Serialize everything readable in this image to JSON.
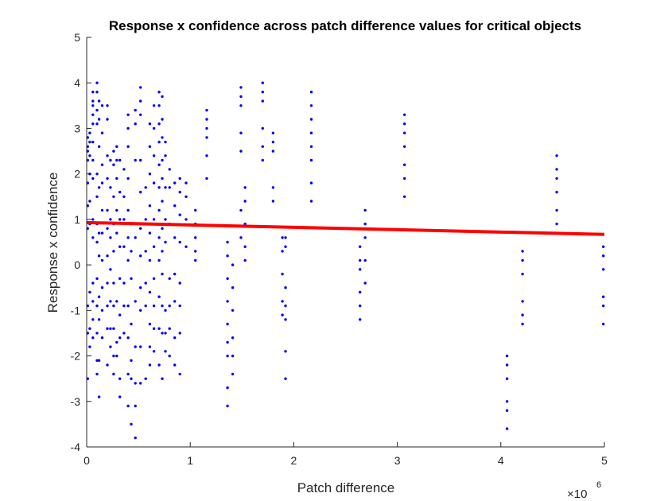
{
  "chart_data": {
    "type": "scatter",
    "title": "Response x confidence across patch difference values for critical objects",
    "xlabel": "Patch difference",
    "ylabel": "Response x confidence",
    "xlim": [
      0,
      5000000
    ],
    "ylim": [
      -4,
      5
    ],
    "x_ticks": [
      0,
      1,
      2,
      3,
      4,
      5
    ],
    "x_tick_labels": [
      "0",
      "1",
      "2",
      "3",
      "4",
      "5"
    ],
    "x_exponent_label": {
      "base": "×10",
      "exp": "6"
    },
    "y_ticks": [
      -4,
      -3,
      -2,
      -1,
      0,
      1,
      2,
      3,
      4,
      5
    ],
    "y_tick_labels": [
      "-4",
      "-3",
      "-2",
      "-1",
      "0",
      "1",
      "2",
      "3",
      "4",
      "5"
    ],
    "grid": false,
    "point_color": "#0000ff",
    "line_color": "#ff0000",
    "point_columns": [
      {
        "x": 10000,
        "ys": [
          2.8,
          2.6,
          2.5,
          2.3,
          1.8,
          1.3,
          0.8,
          -0.9,
          -1.5,
          -2.5
        ]
      },
      {
        "x": 30000,
        "ys": [
          2.9,
          2.7,
          2.4,
          2.0,
          1.4,
          0.9,
          -0.6,
          -1.4,
          -1.8
        ]
      },
      {
        "x": 60000,
        "ys": [
          3.8,
          3.6,
          3.5,
          3.3,
          3.1,
          2.7,
          2.3,
          1.9,
          1.0,
          0.6,
          -0.4,
          -0.8,
          -1.2,
          -1.6
        ]
      },
      {
        "x": 100000,
        "ys": [
          4.0,
          3.8,
          3.4,
          3.1,
          2.0,
          1.5,
          0.9,
          0.5,
          -0.3,
          -0.9,
          -1.5,
          -2.1,
          -2.4
        ]
      },
      {
        "x": 120000,
        "ys": [
          3.6,
          3.2,
          2.6,
          1.7,
          0.7,
          0.2,
          -0.7,
          -1.2,
          -2.1,
          -2.9
        ]
      },
      {
        "x": 150000,
        "ys": [
          3.5,
          2.9,
          2.2,
          1.8,
          1.2,
          0.7,
          0.1,
          -0.5,
          -1.0,
          -1.6
        ]
      },
      {
        "x": 200000,
        "ys": [
          3.5,
          3.2,
          2.4,
          1.9,
          1.2,
          0.8,
          0.2,
          -0.4,
          -0.9,
          -1.4,
          -2.2
        ]
      },
      {
        "x": 230000,
        "ys": [
          2.3,
          1.7,
          1.0,
          0.6,
          -0.1,
          -0.8,
          -1.4,
          -1.8
        ]
      },
      {
        "x": 260000,
        "ys": [
          2.5,
          2.2,
          1.5,
          0.9,
          0.3,
          -0.4,
          -0.9,
          -1.4,
          -2.0,
          -2.4
        ]
      },
      {
        "x": 290000,
        "ys": [
          2.6,
          2.3,
          1.9,
          1.2,
          0.7,
          -0.8,
          -1.7,
          -2.0
        ]
      },
      {
        "x": 320000,
        "ys": [
          2.3,
          1.6,
          1.0,
          0.4,
          -0.3,
          -1.1,
          -1.6,
          -2.5,
          -2.9
        ]
      },
      {
        "x": 360000,
        "ys": [
          2.1,
          1.5,
          1.0,
          0.4,
          -0.4,
          -0.9,
          -1.5
        ]
      },
      {
        "x": 400000,
        "ys": [
          3.3,
          3.0,
          2.6,
          1.9,
          1.2,
          0.6,
          0.1,
          -0.9,
          -1.6,
          -2.4,
          -3.1
        ]
      },
      {
        "x": 430000,
        "ys": [
          0.9,
          0.3,
          -0.3,
          -1.3,
          -2.1,
          -2.5,
          -3.5
        ]
      },
      {
        "x": 470000,
        "ys": [
          3.4,
          3.1,
          2.3,
          0.6,
          -0.8,
          -1.8,
          -2.6,
          -3.1,
          -3.8
        ]
      },
      {
        "x": 520000,
        "ys": [
          3.9,
          3.6,
          3.3,
          2.3,
          1.6,
          0.8,
          0.2,
          -0.5,
          -1.0,
          -1.8,
          -2.6
        ]
      },
      {
        "x": 570000,
        "ys": [
          1.7,
          1.0,
          0.3,
          -0.4,
          -0.9,
          -2.5
        ]
      },
      {
        "x": 610000,
        "ys": [
          3.1,
          2.6,
          2.0,
          1.3,
          0.7,
          0.1,
          -0.6,
          -1.3,
          -1.8,
          -2.2
        ]
      },
      {
        "x": 650000,
        "ys": [
          3.5,
          3.0,
          2.4,
          1.8,
          1.0,
          0.4,
          -0.3,
          -0.9,
          -1.4,
          -1.9
        ]
      },
      {
        "x": 700000,
        "ys": [
          3.8,
          3.5,
          3.1,
          2.7,
          2.2,
          1.7,
          1.2,
          0.6,
          0.1,
          -0.7,
          -1.4,
          -2.2
        ]
      },
      {
        "x": 730000,
        "ys": [
          3.7,
          3.2,
          2.8,
          2.3,
          1.9,
          1.4,
          0.8,
          0.3,
          -0.2,
          -0.9,
          -1.5,
          -2.5
        ]
      },
      {
        "x": 760000,
        "ys": [
          2.7,
          2.4,
          1.7,
          1.0,
          0.5,
          -1.0,
          -1.5,
          -1.9
        ]
      },
      {
        "x": 800000,
        "ys": [
          2.1,
          1.7,
          0.9,
          -0.3,
          -0.9,
          -1.4,
          -2.0
        ]
      },
      {
        "x": 850000,
        "ys": [
          1.8,
          1.3,
          0.6,
          -0.2,
          -0.8,
          -1.6,
          -2.2
        ]
      },
      {
        "x": 900000,
        "ys": [
          1.9,
          1.6,
          1.1,
          0.5,
          -0.4,
          -0.9,
          -1.5,
          -2.4
        ]
      },
      {
        "x": 960000,
        "ys": [
          1.8,
          1.5,
          1.0,
          0.4
        ]
      },
      {
        "x": 1050000,
        "ys": [
          1.2,
          0.9,
          0.6,
          0.3,
          0.1
        ]
      },
      {
        "x": 1160000,
        "ys": [
          3.4,
          3.2,
          3.0,
          2.8,
          2.4,
          1.9
        ]
      },
      {
        "x": 1360000,
        "ys": [
          0.5,
          0.2,
          -0.3,
          -0.8,
          -1.3,
          -1.7,
          -2.0,
          -2.7,
          -3.1
        ]
      },
      {
        "x": 1410000,
        "ys": [
          0.0,
          -0.5,
          -1.0,
          -1.6,
          -2.0,
          -2.4
        ]
      },
      {
        "x": 1490000,
        "ys": [
          3.9,
          3.7,
          3.5,
          2.9,
          2.5,
          1.2,
          0.6
        ]
      },
      {
        "x": 1530000,
        "ys": [
          1.7,
          1.4,
          0.9,
          0.4,
          0.1
        ]
      },
      {
        "x": 1700000,
        "ys": [
          4.0,
          3.8,
          3.6,
          3.0,
          2.6,
          2.3
        ]
      },
      {
        "x": 1800000,
        "ys": [
          2.9,
          2.7,
          2.5,
          1.7,
          1.4
        ]
      },
      {
        "x": 1890000,
        "ys": [
          0.6,
          0.3,
          -0.2,
          -0.8,
          -1.1
        ]
      },
      {
        "x": 1920000,
        "ys": [
          0.6,
          0.4,
          -0.5,
          -0.9,
          -1.2,
          -1.9,
          -2.5
        ]
      },
      {
        "x": 2170000,
        "ys": [
          3.8,
          3.5,
          3.2,
          2.9,
          2.6,
          2.3,
          1.8,
          1.4
        ]
      },
      {
        "x": 2640000,
        "ys": [
          0.4,
          0.1,
          -0.1,
          -0.6,
          -0.9,
          -1.2
        ]
      },
      {
        "x": 2690000,
        "ys": [
          1.2,
          0.9,
          0.6,
          0.1,
          -0.4
        ]
      },
      {
        "x": 3070000,
        "ys": [
          3.3,
          3.1,
          2.9,
          2.6,
          2.2,
          1.9,
          1.5
        ]
      },
      {
        "x": 4060000,
        "ys": [
          -2.0,
          -2.2,
          -2.5,
          -3.0,
          -3.2,
          -3.6
        ]
      },
      {
        "x": 4210000,
        "ys": [
          0.3,
          0.1,
          -0.2,
          -0.8,
          -1.1,
          -1.3
        ]
      },
      {
        "x": 4540000,
        "ys": [
          2.4,
          2.1,
          1.9,
          1.6,
          1.2,
          0.9
        ]
      },
      {
        "x": 4990000,
        "ys": [
          0.4,
          0.2,
          -0.1,
          -0.7,
          -0.9,
          -1.3
        ]
      }
    ],
    "fit_line": {
      "x": [
        0,
        5000000
      ],
      "y": [
        0.93,
        0.67
      ]
    }
  }
}
